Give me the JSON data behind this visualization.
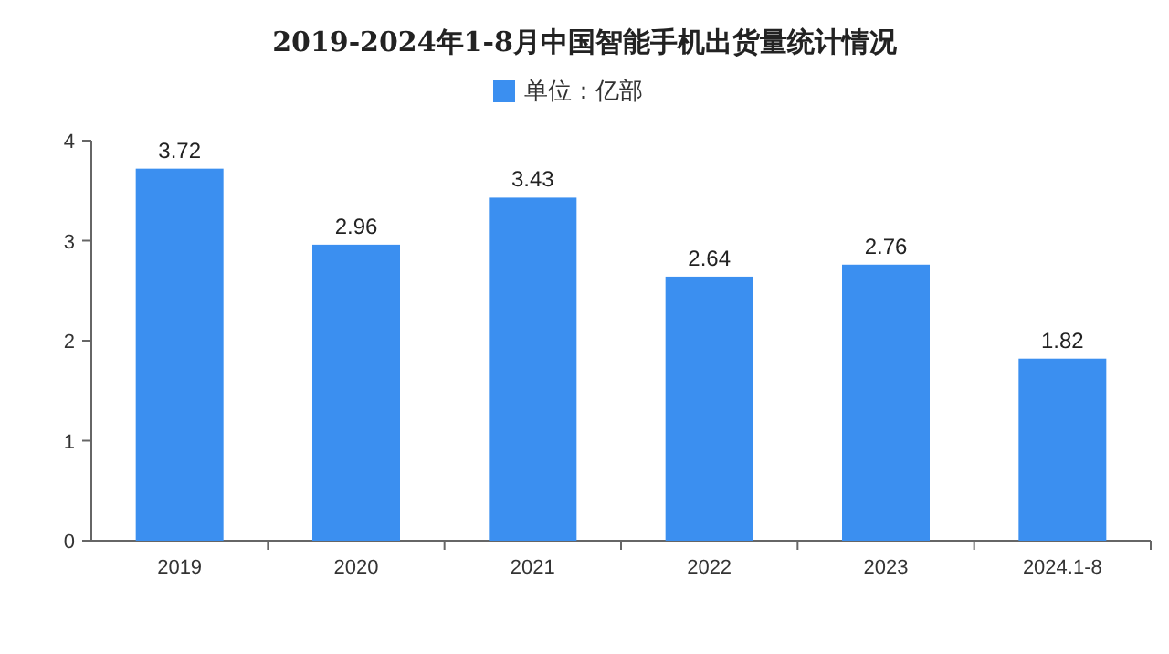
{
  "chart_data": {
    "type": "bar",
    "title": "2019-2024年1-8月中国智能手机出货量统计情况",
    "categories": [
      "2019",
      "2020",
      "2021",
      "2022",
      "2023",
      "2024.1-8"
    ],
    "series": [
      {
        "name": "单位：亿部",
        "color": "#3b8ff0",
        "values": [
          3.72,
          2.96,
          3.43,
          2.64,
          2.76,
          1.82
        ]
      }
    ],
    "ylim": [
      0,
      4
    ],
    "yticks": [
      0,
      1,
      2,
      3,
      4
    ],
    "data_labels": true,
    "legend": "top",
    "grid": false
  }
}
